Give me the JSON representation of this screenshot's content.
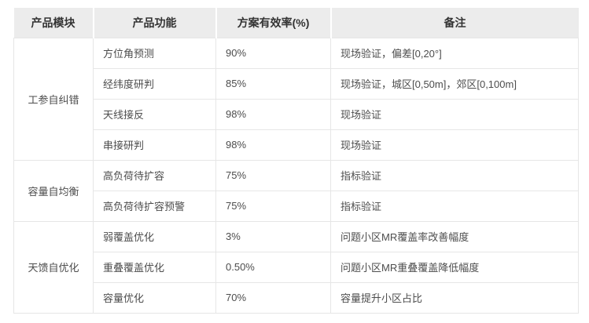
{
  "table": {
    "headers": [
      "产品模块",
      "产品功能",
      "方案有效率(%)",
      "备注"
    ],
    "groups": [
      {
        "module": "工参自纠错",
        "rows": [
          {
            "function": "方位角预测",
            "rate": "90%",
            "note": "现场验证，偏差[0,20°]"
          },
          {
            "function": "经纬度研判",
            "rate": "85%",
            "note": "现场验证，城区[0,50m]，郊区[0,100m]"
          },
          {
            "function": "天线接反",
            "rate": "98%",
            "note": "现场验证"
          },
          {
            "function": "串接研判",
            "rate": "98%",
            "note": "现场验证"
          }
        ]
      },
      {
        "module": "容量自均衡",
        "rows": [
          {
            "function": "高负荷待扩容",
            "rate": "75%",
            "note": "指标验证"
          },
          {
            "function": "高负荷待扩容预警",
            "rate": "75%",
            "note": "指标验证"
          }
        ]
      },
      {
        "module": "天馈自优化",
        "rows": [
          {
            "function": "弱覆盖优化",
            "rate": "3%",
            "note": "问题小区MR覆盖率改善幅度"
          },
          {
            "function": "重叠覆盖优化",
            "rate": "0.50%",
            "note": "问题小区MR重叠覆盖降低幅度"
          },
          {
            "function": "容量优化",
            "rate": "70%",
            "note": "容量提升小区占比"
          }
        ]
      }
    ],
    "colors": {
      "header_bg": "#ececec",
      "border": "#e6e6e6",
      "header_text": "#333333",
      "body_text": "#4d4d4d"
    }
  }
}
